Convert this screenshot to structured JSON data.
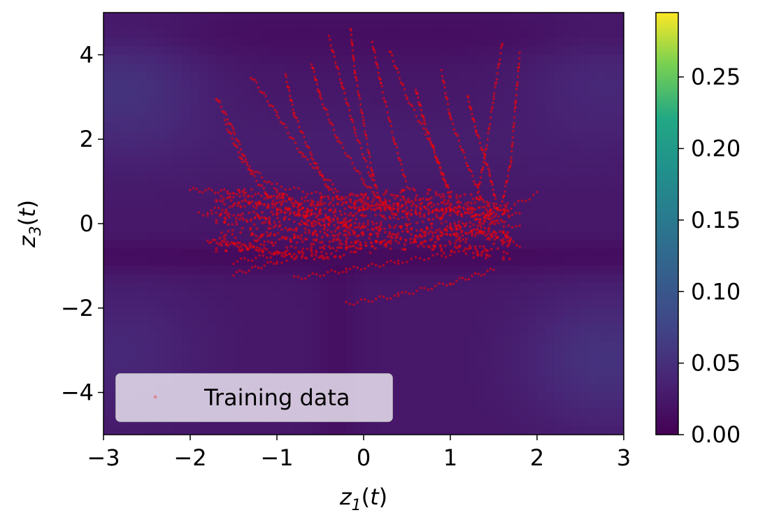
{
  "chart_data": {
    "type": "heatmap",
    "title": "",
    "xlabel": "z1(t)",
    "ylabel": "z3(t)",
    "xlim": [
      -3,
      3
    ],
    "ylim": [
      -5,
      5
    ],
    "x_ticks": [
      -3,
      -2,
      -1,
      0,
      1,
      2,
      3
    ],
    "x_tick_labels": [
      "−3",
      "−2",
      "−1",
      "0",
      "1",
      "2",
      "3"
    ],
    "y_ticks": [
      -4,
      -2,
      0,
      2,
      4
    ],
    "y_tick_labels": [
      "−4",
      "−2",
      "0",
      "2",
      "4"
    ],
    "colormap": "viridis",
    "colorbar": {
      "range": [
        0,
        0.295
      ],
      "ticks": [
        0,
        0.05,
        0.1,
        0.15,
        0.2,
        0.25
      ],
      "tick_labels": [
        "0.00",
        "0.05",
        "0.10",
        "0.15",
        "0.20",
        "0.25"
      ]
    },
    "heatmap_description": "Low values (~0.0-0.06) across the plane; slightly higher values near the corners (-2.6, 3.5) and (2.6, -3.5) and around (2.8, 3.2), (-2.6, -3.2); darker horizontal bands near z3 = -0.8 and z3 = 4.5.",
    "series": [
      {
        "name": "Training data",
        "marker": "point",
        "color": "#ff0000",
        "alpha": 0.25,
        "trajectories": [
          {
            "x": [
              -2.0,
              -1.5,
              -1.0,
              -0.5
            ],
            "y": [
              0.8,
              0.75,
              0.6,
              0.45
            ]
          },
          {
            "x": [
              -1.9,
              -1.2,
              -0.4,
              0.5,
              1.3,
              1.8
            ],
            "y": [
              0.25,
              0.1,
              0.0,
              -0.1,
              -0.2,
              -0.5
            ]
          },
          {
            "x": [
              -1.5,
              -1.0,
              -0.2,
              0.6,
              1.4,
              2.0
            ],
            "y": [
              -1.2,
              -0.9,
              -0.6,
              -0.3,
              0.1,
              0.7
            ]
          },
          {
            "x": [
              -0.2,
              0.4,
              1.0,
              1.5
            ],
            "y": [
              -1.9,
              -1.7,
              -1.4,
              -1.1
            ]
          },
          {
            "x": [
              -1.8,
              -1.2,
              -0.5,
              0.3,
              1.0,
              1.6
            ],
            "y": [
              0.3,
              0.5,
              0.3,
              0.4,
              0.3,
              0.0
            ]
          },
          {
            "x": [
              -1.6,
              -1.4,
              -1.0,
              -0.6
            ],
            "y": [
              2.4,
              1.5,
              0.8,
              0.2
            ]
          },
          {
            "x": [
              -1.7,
              -1.5,
              -1.3,
              -1.0
            ],
            "y": [
              3.0,
              2.2,
              1.2,
              0.4
            ]
          },
          {
            "x": [
              -0.9,
              -0.8,
              -0.6,
              -0.4,
              0.0
            ],
            "y": [
              3.5,
              2.6,
              1.6,
              0.8,
              0.2
            ]
          },
          {
            "x": [
              -0.6,
              -0.5,
              -0.3,
              0.0,
              0.3
            ],
            "y": [
              3.8,
              3.0,
              2.0,
              1.0,
              0.3
            ]
          },
          {
            "x": [
              -0.15,
              -0.1,
              0.0,
              0.1,
              0.2
            ],
            "y": [
              4.6,
              3.6,
              2.4,
              1.2,
              0.4
            ]
          },
          {
            "x": [
              0.1,
              0.2,
              0.35,
              0.5
            ],
            "y": [
              4.3,
              3.3,
              2.0,
              0.9
            ]
          },
          {
            "x": [
              0.3,
              0.5,
              0.8,
              1.0
            ],
            "y": [
              4.1,
              3.0,
              1.8,
              0.6
            ]
          },
          {
            "x": [
              0.9,
              1.0,
              1.2,
              1.4
            ],
            "y": [
              3.6,
              2.5,
              1.4,
              0.4
            ]
          },
          {
            "x": [
              1.6,
              1.5,
              1.4,
              1.3
            ],
            "y": [
              4.3,
              3.0,
              1.6,
              0.6
            ]
          },
          {
            "x": [
              1.8,
              1.75,
              1.7,
              1.6
            ],
            "y": [
              4.0,
              2.8,
              1.5,
              0.5
            ]
          },
          {
            "x": [
              -1.3,
              -1.0,
              -0.7,
              -0.3
            ],
            "y": [
              3.5,
              2.6,
              1.6,
              0.8
            ]
          },
          {
            "x": [
              -0.4,
              -0.25,
              -0.1,
              0.1
            ],
            "y": [
              4.4,
              3.3,
              2.2,
              1.0
            ]
          },
          {
            "x": [
              0.6,
              0.7,
              0.85,
              1.0
            ],
            "y": [
              3.2,
              2.4,
              1.5,
              0.7
            ]
          },
          {
            "x": [
              1.2,
              1.3,
              1.45,
              1.55
            ],
            "y": [
              3.0,
              2.2,
              1.2,
              0.3
            ]
          },
          {
            "x": [
              -1.8,
              -1.5,
              -1.2,
              -0.8
            ],
            "y": [
              -0.4,
              -0.5,
              -0.6,
              -0.8
            ]
          },
          {
            "x": [
              -1.4,
              -0.8,
              -0.2,
              0.5,
              1.2,
              1.8
            ],
            "y": [
              -0.6,
              -0.3,
              -0.1,
              0.2,
              0.4,
              0.2
            ]
          },
          {
            "x": [
              -1.6,
              -1.0,
              -0.3,
              0.4,
              1.1,
              1.7
            ],
            "y": [
              0.0,
              0.2,
              0.5,
              0.3,
              0.0,
              -0.3
            ]
          },
          {
            "x": [
              -1.2,
              -0.6,
              0.0,
              0.6,
              1.2,
              1.8
            ],
            "y": [
              -0.3,
              0.0,
              0.3,
              0.6,
              0.3,
              -0.1
            ]
          },
          {
            "x": [
              -1.0,
              -0.3,
              0.4,
              1.0,
              1.6
            ],
            "y": [
              0.9,
              0.6,
              0.5,
              0.3,
              0.2
            ]
          },
          {
            "x": [
              -1.5,
              -0.9,
              -0.2,
              0.6,
              1.4
            ],
            "y": [
              -0.9,
              -0.7,
              -0.5,
              -0.4,
              -0.6
            ]
          },
          {
            "x": [
              -0.8,
              -0.2,
              0.4,
              1.1
            ],
            "y": [
              -1.3,
              -1.1,
              -0.9,
              -0.7
            ]
          },
          {
            "x": [
              -1.7,
              -1.1,
              -0.4,
              0.3,
              1.0,
              1.5
            ],
            "y": [
              0.6,
              0.4,
              0.1,
              -0.2,
              -0.3,
              -0.2
            ]
          }
        ]
      }
    ],
    "legend": {
      "position": "lower-left",
      "entries": [
        "Training data"
      ]
    }
  }
}
